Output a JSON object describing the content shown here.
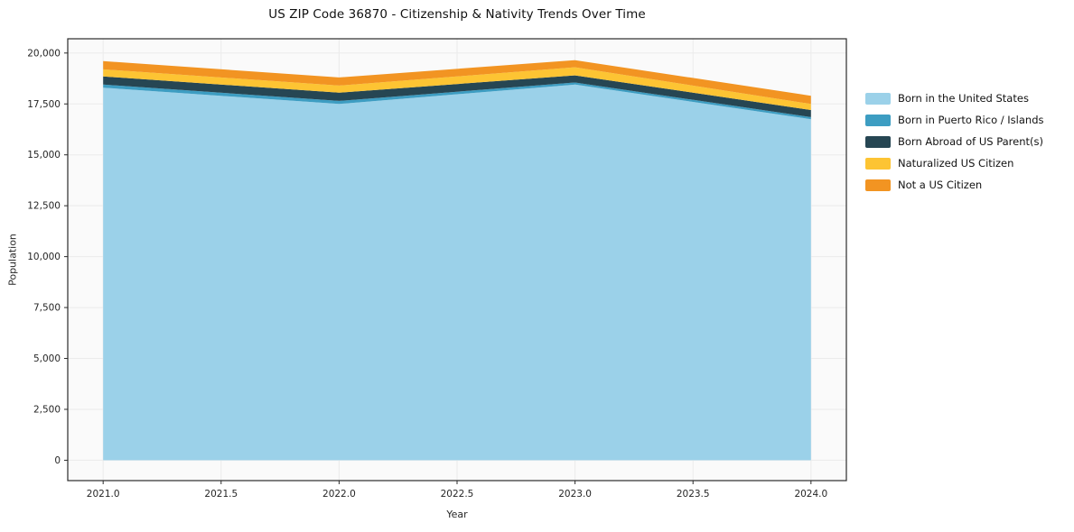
{
  "chart_data": {
    "type": "area",
    "stacked": true,
    "title": "US ZIP Code 36870 - Citizenship & Nativity Trends Over Time",
    "xlabel": "Year",
    "ylabel": "Population",
    "x": [
      2021,
      2022,
      2023,
      2024
    ],
    "series": [
      {
        "name": "Born in the United States",
        "color": "#9bd1e9",
        "values": [
          18300,
          17500,
          18450,
          16750
        ]
      },
      {
        "name": "Born in Puerto Rico / Islands",
        "color": "#3d9dc2",
        "values": [
          150,
          150,
          100,
          100
        ]
      },
      {
        "name": "Born Abroad of US Parent(s)",
        "color": "#264653",
        "values": [
          400,
          400,
          350,
          350
        ]
      },
      {
        "name": "Naturalized US Citizen",
        "color": "#fdc433",
        "values": [
          350,
          350,
          400,
          300
        ]
      },
      {
        "name": "Not a US Citizen",
        "color": "#f29422",
        "values": [
          400,
          400,
          350,
          400
        ]
      }
    ],
    "totals": [
      19600,
      18800,
      19650,
      17900
    ],
    "xlim": [
      2020.85,
      2024.15
    ],
    "ylim": [
      -1000,
      20700
    ],
    "xticks": [
      2021.0,
      2021.5,
      2022.0,
      2022.5,
      2023.0,
      2023.5,
      2024.0
    ],
    "yticks": [
      0,
      2500,
      5000,
      7500,
      10000,
      12500,
      15000,
      17500,
      20000
    ],
    "grid": true,
    "legend_position": "right-outside",
    "colors": {
      "figure_bg": "#ffffff",
      "plot_bg": "#fafafa",
      "grid": "#ebebeb",
      "spine": "#2b2b2b",
      "tick_text": "#262626"
    }
  }
}
